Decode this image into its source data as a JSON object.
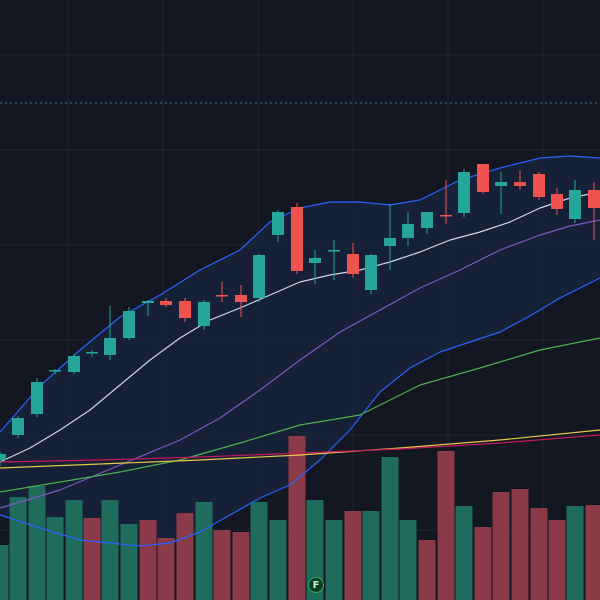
{
  "colors": {
    "background": "#131722",
    "grid": "#1f2433",
    "band_fill": "#17223a",
    "up": "#26a69a",
    "down": "#ef5350",
    "up_volume": "#1f6b5c",
    "down_volume": "#8b3a48",
    "bb_upper": "#2962ff",
    "bb_lower": "#2962ff",
    "ma_fast": "#d1d4dc",
    "ma_mid": "#7e57c2",
    "ma_slow": "#4caf50",
    "ma_200": "#e6c84a",
    "ma_red": "#c2185b",
    "reference_line": "#3a7a8c"
  },
  "marker": {
    "label": "F",
    "icon": "earnings-flag-icon"
  },
  "chart_data": {
    "type": "candlestick",
    "grid": true,
    "y_range": [
      0,
      600
    ],
    "reference_level": 497,
    "candles": [
      {
        "x": 0,
        "o": 140,
        "h": 148,
        "l": 134,
        "c": 146
      },
      {
        "x": 18,
        "o": 165,
        "h": 184,
        "l": 162,
        "c": 182
      },
      {
        "x": 37,
        "o": 186,
        "h": 222,
        "l": 183,
        "c": 218
      },
      {
        "x": 55,
        "o": 229,
        "h": 231,
        "l": 226,
        "c": 230
      },
      {
        "x": 74,
        "o": 228,
        "h": 246,
        "l": 226,
        "c": 244
      },
      {
        "x": 92,
        "o": 247,
        "h": 250,
        "l": 243,
        "c": 248
      },
      {
        "x": 110,
        "o": 245,
        "h": 294,
        "l": 240,
        "c": 262
      },
      {
        "x": 129,
        "o": 262,
        "h": 293,
        "l": 260,
        "c": 289
      },
      {
        "x": 148,
        "o": 297,
        "h": 300,
        "l": 284,
        "c": 299
      },
      {
        "x": 166,
        "o": 299,
        "h": 302,
        "l": 293,
        "c": 295
      },
      {
        "x": 185,
        "o": 299,
        "h": 302,
        "l": 278,
        "c": 282
      },
      {
        "x": 204,
        "o": 274,
        "h": 300,
        "l": 270,
        "c": 298
      },
      {
        "x": 222,
        "o": 305,
        "h": 318,
        "l": 298,
        "c": 304
      },
      {
        "x": 241,
        "o": 305,
        "h": 315,
        "l": 283,
        "c": 298
      },
      {
        "x": 259,
        "o": 302,
        "h": 346,
        "l": 298,
        "c": 345
      },
      {
        "x": 278,
        "o": 365,
        "h": 390,
        "l": 358,
        "c": 388
      },
      {
        "x": 297,
        "o": 393,
        "h": 397,
        "l": 326,
        "c": 329
      },
      {
        "x": 315,
        "o": 337,
        "h": 350,
        "l": 316,
        "c": 342
      },
      {
        "x": 334,
        "o": 349,
        "h": 360,
        "l": 320,
        "c": 350
      },
      {
        "x": 353,
        "o": 346,
        "h": 357,
        "l": 322,
        "c": 326
      },
      {
        "x": 371,
        "o": 310,
        "h": 346,
        "l": 306,
        "c": 345
      },
      {
        "x": 390,
        "o": 354,
        "h": 396,
        "l": 330,
        "c": 362
      },
      {
        "x": 408,
        "o": 362,
        "h": 388,
        "l": 354,
        "c": 376
      },
      {
        "x": 427,
        "o": 372,
        "h": 388,
        "l": 366,
        "c": 388
      },
      {
        "x": 446,
        "o": 385,
        "h": 420,
        "l": 376,
        "c": 384
      },
      {
        "x": 464,
        "o": 387,
        "h": 431,
        "l": 383,
        "c": 428
      },
      {
        "x": 483,
        "o": 436,
        "h": 436,
        "l": 406,
        "c": 408
      },
      {
        "x": 501,
        "o": 414,
        "h": 428,
        "l": 386,
        "c": 418
      },
      {
        "x": 520,
        "o": 418,
        "h": 430,
        "l": 410,
        "c": 414
      },
      {
        "x": 539,
        "o": 426,
        "h": 428,
        "l": 400,
        "c": 403
      },
      {
        "x": 557,
        "o": 406,
        "h": 412,
        "l": 385,
        "c": 391
      },
      {
        "x": 575,
        "o": 381,
        "h": 420,
        "l": 377,
        "c": 410
      },
      {
        "x": 594,
        "o": 410,
        "h": 418,
        "l": 360,
        "c": 392
      }
    ],
    "volume": [
      {
        "x": 0,
        "v": 55,
        "up": true
      },
      {
        "x": 18,
        "v": 103,
        "up": true
      },
      {
        "x": 37,
        "v": 114,
        "up": true
      },
      {
        "x": 55,
        "v": 83,
        "up": true
      },
      {
        "x": 74,
        "v": 100,
        "up": true
      },
      {
        "x": 92,
        "v": 82,
        "up": false
      },
      {
        "x": 110,
        "v": 100,
        "up": true
      },
      {
        "x": 129,
        "v": 76,
        "up": true
      },
      {
        "x": 148,
        "v": 80,
        "up": false
      },
      {
        "x": 166,
        "v": 62,
        "up": false
      },
      {
        "x": 185,
        "v": 87,
        "up": false
      },
      {
        "x": 204,
        "v": 98,
        "up": true
      },
      {
        "x": 222,
        "v": 70,
        "up": false
      },
      {
        "x": 241,
        "v": 68,
        "up": false
      },
      {
        "x": 259,
        "v": 98,
        "up": true
      },
      {
        "x": 278,
        "v": 80,
        "up": true
      },
      {
        "x": 297,
        "v": 164,
        "up": false
      },
      {
        "x": 315,
        "v": 100,
        "up": true
      },
      {
        "x": 334,
        "v": 80,
        "up": true
      },
      {
        "x": 353,
        "v": 89,
        "up": false
      },
      {
        "x": 371,
        "v": 89,
        "up": true
      },
      {
        "x": 390,
        "v": 143,
        "up": true
      },
      {
        "x": 408,
        "v": 80,
        "up": true
      },
      {
        "x": 427,
        "v": 60,
        "up": false
      },
      {
        "x": 446,
        "v": 149,
        "up": false
      },
      {
        "x": 464,
        "v": 94,
        "up": true
      },
      {
        "x": 483,
        "v": 73,
        "up": false
      },
      {
        "x": 501,
        "v": 108,
        "up": false
      },
      {
        "x": 520,
        "v": 111,
        "up": false
      },
      {
        "x": 539,
        "v": 92,
        "up": false
      },
      {
        "x": 557,
        "v": 80,
        "up": false
      },
      {
        "x": 575,
        "v": 94,
        "up": true
      },
      {
        "x": 594,
        "v": 95,
        "up": false
      }
    ],
    "lines": [
      {
        "key": "bb_upper",
        "points": [
          [
            0,
            168
          ],
          [
            40,
            214
          ],
          [
            80,
            250
          ],
          [
            120,
            283
          ],
          [
            160,
            305
          ],
          [
            200,
            330
          ],
          [
            240,
            350
          ],
          [
            270,
            378
          ],
          [
            300,
            392
          ],
          [
            330,
            398
          ],
          [
            360,
            398
          ],
          [
            390,
            395
          ],
          [
            420,
            400
          ],
          [
            460,
            420
          ],
          [
            500,
            432
          ],
          [
            540,
            442
          ],
          [
            570,
            444
          ],
          [
            600,
            442
          ]
        ]
      },
      {
        "key": "ma_fast",
        "points": [
          [
            0,
            138
          ],
          [
            30,
            152
          ],
          [
            60,
            170
          ],
          [
            90,
            190
          ],
          [
            120,
            215
          ],
          [
            150,
            240
          ],
          [
            180,
            262
          ],
          [
            210,
            280
          ],
          [
            240,
            292
          ],
          [
            270,
            305
          ],
          [
            300,
            318
          ],
          [
            330,
            325
          ],
          [
            360,
            330
          ],
          [
            390,
            338
          ],
          [
            420,
            348
          ],
          [
            450,
            360
          ],
          [
            480,
            368
          ],
          [
            510,
            378
          ],
          [
            540,
            392
          ],
          [
            570,
            402
          ],
          [
            600,
            408
          ]
        ]
      },
      {
        "key": "ma_mid",
        "points": [
          [
            0,
            92
          ],
          [
            60,
            110
          ],
          [
            120,
            135
          ],
          [
            180,
            160
          ],
          [
            220,
            182
          ],
          [
            260,
            210
          ],
          [
            300,
            240
          ],
          [
            340,
            268
          ],
          [
            380,
            290
          ],
          [
            420,
            312
          ],
          [
            460,
            330
          ],
          [
            500,
            350
          ],
          [
            540,
            365
          ],
          [
            570,
            374
          ],
          [
            600,
            380
          ]
        ]
      },
      {
        "key": "bb_lower",
        "points": [
          [
            0,
            85
          ],
          [
            40,
            72
          ],
          [
            80,
            60
          ],
          [
            110,
            57
          ],
          [
            140,
            54
          ],
          [
            170,
            57
          ],
          [
            200,
            68
          ],
          [
            230,
            85
          ],
          [
            260,
            102
          ],
          [
            290,
            115
          ],
          [
            320,
            140
          ],
          [
            350,
            170
          ],
          [
            380,
            208
          ],
          [
            410,
            232
          ],
          [
            440,
            248
          ],
          [
            470,
            258
          ],
          [
            500,
            268
          ],
          [
            530,
            284
          ],
          [
            560,
            302
          ],
          [
            600,
            322
          ]
        ]
      },
      {
        "key": "ma_slow",
        "points": [
          [
            0,
            108
          ],
          [
            60,
            118
          ],
          [
            120,
            128
          ],
          [
            180,
            140
          ],
          [
            240,
            157
          ],
          [
            300,
            175
          ],
          [
            360,
            185
          ],
          [
            420,
            215
          ],
          [
            480,
            232
          ],
          [
            540,
            250
          ],
          [
            600,
            262
          ]
        ]
      },
      {
        "key": "ma_200",
        "points": [
          [
            0,
            132
          ],
          [
            100,
            136
          ],
          [
            200,
            140
          ],
          [
            300,
            145
          ],
          [
            400,
            152
          ],
          [
            500,
            160
          ],
          [
            600,
            170
          ]
        ]
      },
      {
        "key": "ma_red",
        "points": [
          [
            0,
            138
          ],
          [
            100,
            140
          ],
          [
            200,
            143
          ],
          [
            300,
            147
          ],
          [
            400,
            151
          ],
          [
            500,
            157
          ],
          [
            600,
            165
          ]
        ]
      }
    ]
  }
}
